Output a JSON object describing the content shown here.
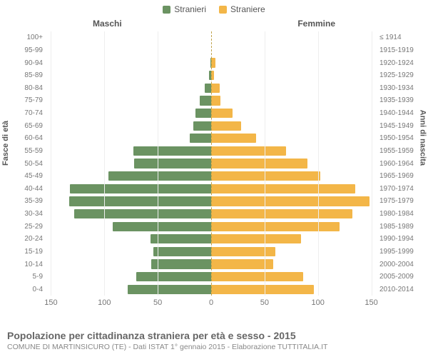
{
  "legend": {
    "male": {
      "label": "Stranieri",
      "color": "#6b9362"
    },
    "female": {
      "label": "Straniere",
      "color": "#f3b648"
    }
  },
  "headers": {
    "left": "Maschi",
    "right": "Femmine",
    "y_left": "Fasce di età",
    "y_right": "Anni di nascita"
  },
  "chart": {
    "type": "population-pyramid",
    "x_max": 155,
    "x_ticks_male": [
      150,
      100,
      50,
      0
    ],
    "x_ticks_female": [
      0,
      50,
      100,
      150
    ],
    "grid_color": "#eeeeee",
    "center_line_color": "#bfa24a",
    "background_color": "#ffffff",
    "bar_color_male": "#6b9362",
    "bar_color_female": "#f3b648",
    "rows": [
      {
        "age": "100+",
        "birth": "≤ 1914",
        "m": 0,
        "f": 0
      },
      {
        "age": "95-99",
        "birth": "1915-1919",
        "m": 0,
        "f": 0
      },
      {
        "age": "90-94",
        "birth": "1920-1924",
        "m": 1,
        "f": 4
      },
      {
        "age": "85-89",
        "birth": "1925-1929",
        "m": 2,
        "f": 3
      },
      {
        "age": "80-84",
        "birth": "1930-1934",
        "m": 6,
        "f": 8
      },
      {
        "age": "75-79",
        "birth": "1935-1939",
        "m": 11,
        "f": 9
      },
      {
        "age": "70-74",
        "birth": "1940-1944",
        "m": 15,
        "f": 20
      },
      {
        "age": "65-69",
        "birth": "1945-1949",
        "m": 17,
        "f": 28
      },
      {
        "age": "60-64",
        "birth": "1950-1954",
        "m": 20,
        "f": 42
      },
      {
        "age": "55-59",
        "birth": "1955-1959",
        "m": 73,
        "f": 70
      },
      {
        "age": "50-54",
        "birth": "1960-1964",
        "m": 72,
        "f": 90
      },
      {
        "age": "45-49",
        "birth": "1965-1969",
        "m": 96,
        "f": 102
      },
      {
        "age": "40-44",
        "birth": "1970-1974",
        "m": 132,
        "f": 135
      },
      {
        "age": "35-39",
        "birth": "1975-1979",
        "m": 133,
        "f": 148
      },
      {
        "age": "30-34",
        "birth": "1980-1984",
        "m": 128,
        "f": 132
      },
      {
        "age": "25-29",
        "birth": "1985-1989",
        "m": 92,
        "f": 120
      },
      {
        "age": "20-24",
        "birth": "1990-1994",
        "m": 57,
        "f": 84
      },
      {
        "age": "15-19",
        "birth": "1995-1999",
        "m": 54,
        "f": 60
      },
      {
        "age": "10-14",
        "birth": "2000-2004",
        "m": 56,
        "f": 58
      },
      {
        "age": "5-9",
        "birth": "2005-2009",
        "m": 70,
        "f": 86
      },
      {
        "age": "0-4",
        "birth": "2010-2014",
        "m": 78,
        "f": 96
      }
    ]
  },
  "footer": {
    "title": "Popolazione per cittadinanza straniera per età e sesso - 2015",
    "subtitle": "COMUNE DI MARTINSICURO (TE) - Dati ISTAT 1° gennaio 2015 - Elaborazione TUTTITALIA.IT"
  }
}
